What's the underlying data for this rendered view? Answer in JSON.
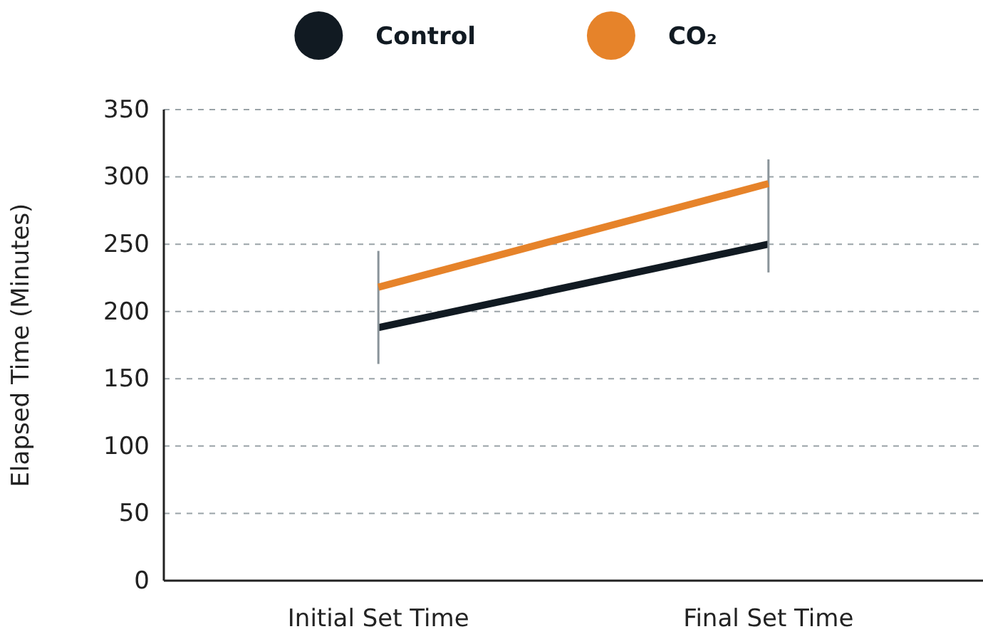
{
  "chart_data": {
    "type": "line",
    "ylabel": "Elapsed Time (Minutes)",
    "categories": [
      "Initial Set Time",
      "Final Set Time"
    ],
    "series": [
      {
        "name": "Control",
        "color": "#111a22",
        "values": [
          188,
          250
        ],
        "errors": [
          [
            161,
            245
          ],
          [
            229,
            313
          ]
        ]
      },
      {
        "name": "CO₂",
        "color": "#e6832a",
        "values": [
          218,
          295
        ]
      }
    ],
    "ylim": [
      0,
      350
    ],
    "yticks": [
      0,
      50,
      100,
      150,
      200,
      250,
      300,
      350
    ],
    "grid": "y",
    "legend": "top",
    "marker": "none",
    "line_style": "solid"
  }
}
